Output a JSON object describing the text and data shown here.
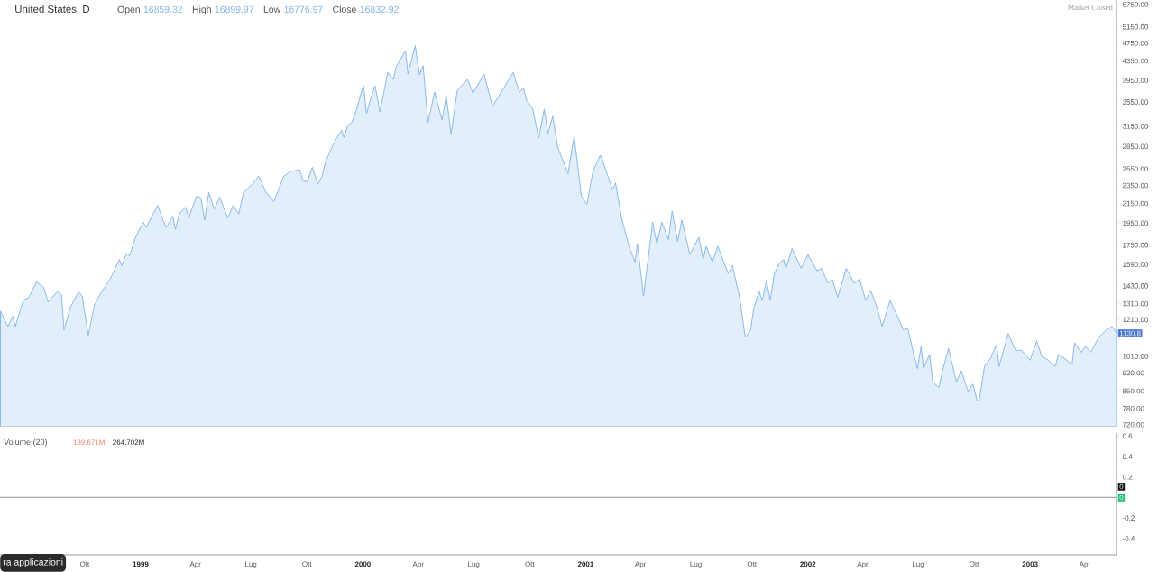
{
  "chart_data": [
    {
      "type": "area",
      "title": "United States, D",
      "annotations": [
        "Open",
        "16859.32",
        "High",
        "16899.97",
        "Low",
        "16776.97",
        "Close",
        "16832.92",
        "Market Closed",
        {
          "text": "1130.8",
          "x": "2003-05-23",
          "y": 1130.8
        }
      ],
      "x": [
        "1998-05-16",
        "1998-05-28",
        "1998-06-05",
        "1998-06-09",
        "1998-06-22",
        "1998-07-01",
        "1998-07-14",
        "1998-07-26",
        "1998-08-02",
        "1998-08-17",
        "1998-08-24",
        "1998-08-28",
        "1998-09-08",
        "1998-09-21",
        "1998-09-27",
        "1998-10-07",
        "1998-10-17",
        "1998-10-29",
        "1998-11-12",
        "1998-11-27",
        "1998-12-01",
        "1998-12-09",
        "1998-12-14",
        "1998-12-23",
        "1999-01-05",
        "1999-01-10",
        "1999-01-29",
        "1999-02-08",
        "1999-02-12",
        "1999-02-23",
        "1999-02-27",
        "1999-03-06",
        "1999-03-16",
        "1999-03-21",
        "1999-04-03",
        "1999-04-10",
        "1999-04-16",
        "1999-04-23",
        "1999-05-02",
        "1999-05-11",
        "1999-05-24",
        "1999-06-02",
        "1999-06-11",
        "1999-06-19",
        "1999-07-04",
        "1999-07-14",
        "1999-07-26",
        "1999-08-08",
        "1999-08-24",
        "1999-09-05",
        "1999-09-19",
        "1999-09-25",
        "1999-10-02",
        "1999-10-10",
        "1999-10-19",
        "1999-10-26",
        "1999-11-01",
        "1999-11-15",
        "1999-11-27",
        "1999-12-01",
        "1999-12-07",
        "1999-12-14",
        "1999-12-22",
        "1999-12-29",
        "2000-01-02",
        "2000-01-07",
        "2000-01-13",
        "2000-01-21",
        "2000-01-29",
        "2000-02-11",
        "2000-02-20",
        "2000-02-25",
        "2000-03-11",
        "2000-03-15",
        "2000-03-27",
        "2000-04-03",
        "2000-04-09",
        "2000-04-17",
        "2000-04-28",
        "2000-05-10",
        "2000-05-17",
        "2000-05-25",
        "2000-06-04",
        "2000-06-21",
        "2000-06-30",
        "2000-07-18",
        "2000-08-01",
        "2000-08-19",
        "2000-09-04",
        "2000-09-14",
        "2000-09-21",
        "2000-09-26",
        "2000-10-06",
        "2000-10-16",
        "2000-10-25",
        "2000-10-31",
        "2000-11-08",
        "2000-11-16",
        "2000-12-03",
        "2000-12-13",
        "2000-12-25",
        "2001-01-03",
        "2001-01-13",
        "2001-01-25",
        "2001-02-04",
        "2001-02-14",
        "2001-02-19",
        "2001-03-01",
        "2001-03-13",
        "2001-03-23",
        "2001-03-27",
        "2001-04-06",
        "2001-04-21",
        "2001-04-28",
        "2001-05-06",
        "2001-05-17",
        "2001-05-23",
        "2001-06-01",
        "2001-06-08",
        "2001-06-21",
        "2001-07-06",
        "2001-07-13",
        "2001-07-18",
        "2001-07-28",
        "2001-08-06",
        "2001-08-23",
        "2001-08-30",
        "2001-09-11",
        "2001-09-20",
        "2001-09-29",
        "2001-10-04",
        "2001-10-13",
        "2001-10-18",
        "2001-10-25",
        "2001-10-31",
        "2001-11-07",
        "2001-11-14",
        "2001-11-22",
        "2001-11-26",
        "2001-12-06",
        "2001-12-21",
        "2002-01-01",
        "2002-01-16",
        "2002-01-23",
        "2002-02-03",
        "2002-02-10",
        "2002-02-19",
        "2002-03-05",
        "2002-03-18",
        "2002-03-27",
        "2002-04-06",
        "2002-04-14",
        "2002-04-24",
        "2002-05-03",
        "2002-05-16",
        "2002-05-27",
        "2002-06-07",
        "2002-06-14",
        "2002-06-21",
        "2002-06-30",
        "2002-07-06",
        "2002-07-10",
        "2002-07-20",
        "2002-07-25",
        "2002-08-04",
        "2002-08-11",
        "2002-08-20",
        "2002-09-02",
        "2002-09-10",
        "2002-09-21",
        "2002-09-29",
        "2002-10-06",
        "2002-10-10",
        "2002-10-18",
        "2002-10-28",
        "2002-11-07",
        "2002-11-11",
        "2002-11-26",
        "2002-12-08",
        "2002-12-18",
        "2003-01-01",
        "2003-01-12",
        "2003-01-20",
        "2003-01-31",
        "2003-02-11",
        "2003-02-17",
        "2003-02-26",
        "2003-03-11",
        "2003-03-15",
        "2003-03-26",
        "2003-04-02",
        "2003-04-11",
        "2003-04-24",
        "2003-05-06",
        "2003-05-16",
        "2003-05-23"
      ],
      "values": [
        1260,
        1170,
        1230,
        1170,
        1330,
        1350,
        1460,
        1420,
        1320,
        1390,
        1370,
        1150,
        1290,
        1390,
        1360,
        1120,
        1300,
        1390,
        1480,
        1630,
        1580,
        1680,
        1660,
        1810,
        1960,
        1910,
        2130,
        1960,
        1910,
        2020,
        1890,
        2050,
        2110,
        2000,
        2230,
        2210,
        1980,
        2270,
        2090,
        2220,
        2000,
        2130,
        2040,
        2270,
        2370,
        2460,
        2270,
        2170,
        2460,
        2520,
        2540,
        2400,
        2400,
        2570,
        2370,
        2460,
        2650,
        2910,
        3090,
        2980,
        3160,
        3210,
        3430,
        3710,
        3850,
        3350,
        3580,
        3850,
        3380,
        4110,
        3970,
        4230,
        4580,
        4080,
        4690,
        4060,
        4250,
        3210,
        3730,
        3250,
        3660,
        3030,
        3760,
        3970,
        3710,
        4080,
        3470,
        3800,
        4110,
        3730,
        3800,
        3580,
        3430,
        2970,
        3430,
        3040,
        3310,
        2840,
        2490,
        3000,
        2230,
        2140,
        2520,
        2730,
        2520,
        2300,
        2380,
        2000,
        1740,
        1610,
        1760,
        1360,
        1960,
        1760,
        1960,
        1800,
        2070,
        1780,
        1980,
        1670,
        1820,
        1630,
        1740,
        1610,
        1740,
        1520,
        1580,
        1350,
        1110,
        1150,
        1280,
        1390,
        1330,
        1470,
        1330,
        1520,
        1590,
        1630,
        1560,
        1720,
        1560,
        1670,
        1540,
        1560,
        1450,
        1480,
        1350,
        1560,
        1450,
        1480,
        1330,
        1400,
        1290,
        1170,
        1330,
        1240,
        1150,
        1160,
        1060,
        950,
        1060,
        950,
        1020,
        890,
        865,
        950,
        1050,
        890,
        940,
        850,
        880,
        810,
        820,
        960,
        1000,
        1070,
        960,
        1130,
        1040,
        1040,
        990,
        1090,
        1010,
        990,
        960,
        1020,
        1000,
        970,
        1080,
        1030,
        1060,
        1030,
        1110,
        1150,
        1170,
        1130.8
      ],
      "color": "#7db3ea",
      "log": true,
      "xlim": [
        "1998-05-15",
        "2003-05-23"
      ],
      "ylim": [
        716,
        5880
      ],
      "yticks": [
        {
          "value": 720,
          "label": "720.00"
        },
        {
          "value": 780,
          "label": "780.00"
        },
        {
          "value": 850,
          "label": "850.00"
        },
        {
          "value": 930,
          "label": "930.00"
        },
        {
          "value": 1010,
          "label": "1010.00"
        },
        {
          "value": 1210,
          "label": "1210.00"
        },
        {
          "value": 1310,
          "label": "1310.00"
        },
        {
          "value": 1430,
          "label": "1430.00"
        },
        {
          "value": 1590,
          "label": "1590.00"
        },
        {
          "value": 1750,
          "label": "1750.00"
        },
        {
          "value": 1950,
          "label": "1950.00"
        },
        {
          "value": 2150,
          "label": "2150.00"
        },
        {
          "value": 2350,
          "label": "2350.00"
        },
        {
          "value": 2550,
          "label": "2550.00"
        },
        {
          "value": 2850,
          "label": "2850.00"
        },
        {
          "value": 3150,
          "label": "3150.00"
        },
        {
          "value": 3550,
          "label": "3550.00"
        },
        {
          "value": 3950,
          "label": "3950.00"
        },
        {
          "value": 4350,
          "label": "4350.00"
        },
        {
          "value": 4750,
          "label": "4750.00"
        },
        {
          "value": 5150,
          "label": "5150.00"
        },
        {
          "value": 5750,
          "label": "5750.00"
        }
      ],
      "tick_labels": "y"
    },
    {
      "type": "line",
      "title": "Volume (20)",
      "annotations": [
        "189.671M",
        "264.702M",
        {
          "text": "0",
          "x": "2003-05-23",
          "y": 0
        },
        {
          "text": "0",
          "x": "2003-05-23",
          "y": 0
        },
        "ra applicazioni"
      ],
      "x": [
        "1998-05-15",
        "2003-05-23"
      ],
      "values": [
        0,
        0
      ],
      "color": "#a8a8a8",
      "xlim": [
        "1998-05-15",
        "2003-05-23"
      ],
      "xticks": [
        {
          "value": "1998-10-01",
          "label": "Ott"
        },
        {
          "value": "1999-01-01",
          "label": "1999"
        },
        {
          "value": "1999-04-01",
          "label": "Apr"
        },
        {
          "value": "1999-07-01",
          "label": "Lug"
        },
        {
          "value": "1999-10-01",
          "label": "Ott"
        },
        {
          "value": "2000-01-01",
          "label": "2000"
        },
        {
          "value": "2000-04-01",
          "label": "Apr"
        },
        {
          "value": "2000-07-01",
          "label": "Lug"
        },
        {
          "value": "2000-10-01",
          "label": "Ott"
        },
        {
          "value": "2001-01-01",
          "label": "2001"
        },
        {
          "value": "2001-04-01",
          "label": "Apr"
        },
        {
          "value": "2001-07-01",
          "label": "Lug"
        },
        {
          "value": "2001-10-01",
          "label": "Ott"
        },
        {
          "value": "2002-01-01",
          "label": "2002"
        },
        {
          "value": "2002-04-01",
          "label": "Apr"
        },
        {
          "value": "2002-07-01",
          "label": "Lug"
        },
        {
          "value": "2002-10-01",
          "label": "Ott"
        },
        {
          "value": "2003-01-01",
          "label": "2003"
        },
        {
          "value": "2003-04-01",
          "label": "Apr"
        }
      ],
      "ylim": [
        -0.56,
        0.63
      ],
      "yticks": [
        -0.4,
        -0.2,
        0.2,
        0.4,
        0.6
      ]
    }
  ]
}
